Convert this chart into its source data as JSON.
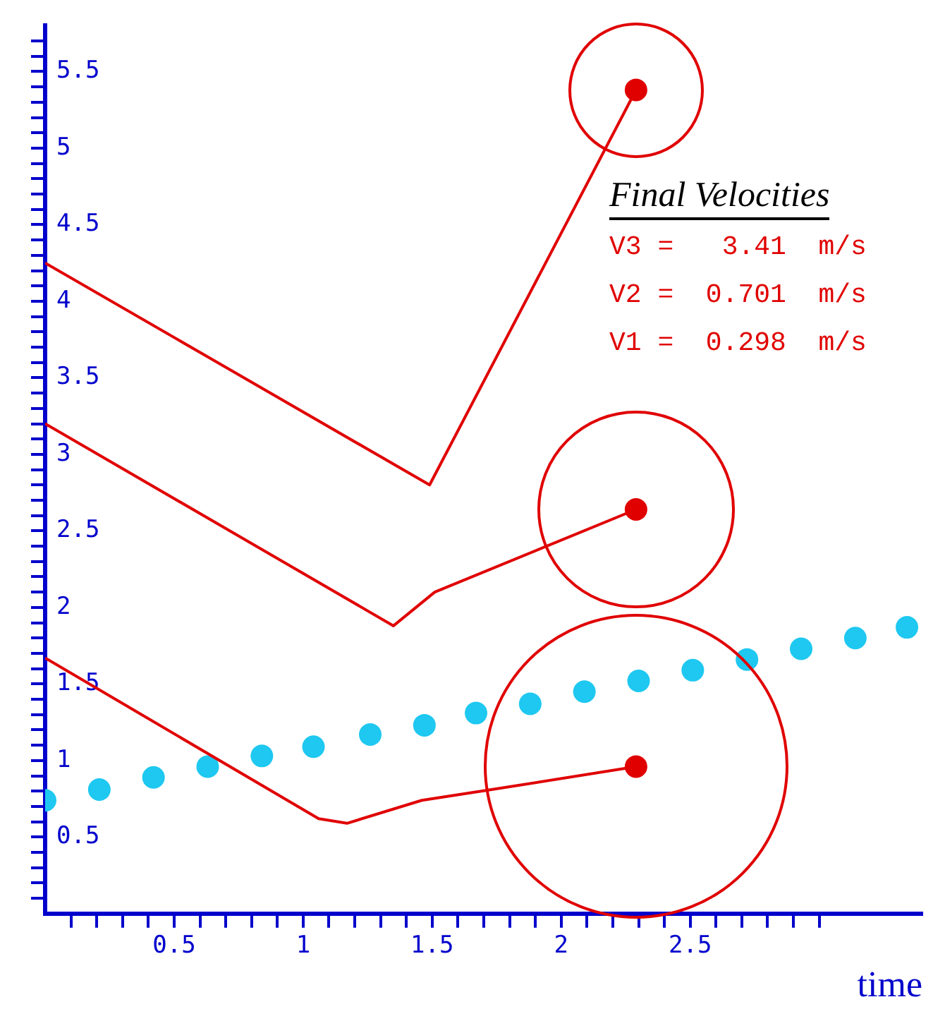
{
  "chart_data": {
    "type": "line",
    "xlabel": "time",
    "xlim": [
      0,
      3.4
    ],
    "ylim": [
      0,
      5.8
    ],
    "xticks": [
      {
        "value": 0.1,
        "label": null
      },
      {
        "value": 0.2,
        "label": null
      },
      {
        "value": 0.3,
        "label": null
      },
      {
        "value": 0.4,
        "label": null
      },
      {
        "value": 0.5,
        "label": "0.5"
      },
      {
        "value": 0.6,
        "label": null
      },
      {
        "value": 0.7,
        "label": null
      },
      {
        "value": 0.8,
        "label": null
      },
      {
        "value": 0.9,
        "label": null
      },
      1,
      {
        "value": 1.1,
        "label": null
      },
      {
        "value": 1.2,
        "label": null
      },
      {
        "value": 1.3,
        "label": null
      },
      {
        "value": 1.4,
        "label": null
      },
      {
        "value": 1.5,
        "label": "1.5"
      },
      {
        "value": 1.6,
        "label": null
      },
      {
        "value": 1.7,
        "label": null
      },
      {
        "value": 1.8,
        "label": null
      },
      {
        "value": 1.9,
        "label": null
      },
      2,
      {
        "value": 2.1,
        "label": null
      },
      {
        "value": 2.2,
        "label": null
      },
      {
        "value": 2.3,
        "label": null
      },
      {
        "value": 2.4,
        "label": null
      },
      {
        "value": 2.5,
        "label": "2.5"
      },
      {
        "value": 2.6,
        "label": null
      },
      {
        "value": 2.7,
        "label": null
      },
      {
        "value": 2.8,
        "label": null
      },
      {
        "value": 2.9,
        "label": null
      },
      {
        "value": 3,
        "label": null
      }
    ],
    "yticks": [
      {
        "value": 0.1,
        "label": null
      },
      {
        "value": 0.2,
        "label": null
      },
      {
        "value": 0.3,
        "label": null
      },
      {
        "value": 0.4,
        "label": null
      },
      {
        "value": 0.5,
        "label": "0.5"
      },
      {
        "value": 0.6,
        "label": null
      },
      {
        "value": 0.7,
        "label": null
      },
      {
        "value": 0.8,
        "label": null
      },
      {
        "value": 0.9,
        "label": null
      },
      1,
      {
        "value": 1.1,
        "label": null
      },
      {
        "value": 1.2,
        "label": null
      },
      {
        "value": 1.3,
        "label": null
      },
      {
        "value": 1.4,
        "label": null
      },
      {
        "value": 1.5,
        "label": "1.5"
      },
      {
        "value": 1.6,
        "label": null
      },
      {
        "value": 1.7,
        "label": null
      },
      {
        "value": 1.8,
        "label": null
      },
      {
        "value": 1.9,
        "label": null
      },
      2,
      {
        "value": 2.1,
        "label": null
      },
      {
        "value": 2.2,
        "label": null
      },
      {
        "value": 2.3,
        "label": null
      },
      {
        "value": 2.4,
        "label": null
      },
      {
        "value": 2.5,
        "label": "2.5"
      },
      {
        "value": 2.6,
        "label": null
      },
      {
        "value": 2.7,
        "label": null
      },
      {
        "value": 2.8,
        "label": null
      },
      {
        "value": 2.9,
        "label": null
      },
      3,
      {
        "value": 3.1,
        "label": null
      },
      {
        "value": 3.2,
        "label": null
      },
      {
        "value": 3.3,
        "label": null
      },
      {
        "value": 3.4,
        "label": null
      },
      {
        "value": 3.5,
        "label": "3.5"
      },
      {
        "value": 3.6,
        "label": null
      },
      {
        "value": 3.7,
        "label": null
      },
      {
        "value": 3.8,
        "label": null
      },
      {
        "value": 3.9,
        "label": null
      },
      4,
      {
        "value": 4.1,
        "label": null
      },
      {
        "value": 4.2,
        "label": null
      },
      {
        "value": 4.3,
        "label": null
      },
      {
        "value": 4.4,
        "label": null
      },
      {
        "value": 4.5,
        "label": "4.5"
      },
      {
        "value": 4.6,
        "label": null
      },
      {
        "value": 4.7,
        "label": null
      },
      {
        "value": 4.8,
        "label": null
      },
      {
        "value": 4.9,
        "label": null
      },
      5,
      {
        "value": 5.1,
        "label": null
      },
      {
        "value": 5.2,
        "label": null
      },
      {
        "value": 5.3,
        "label": null
      },
      {
        "value": 5.4,
        "label": null
      },
      {
        "value": 5.5,
        "label": "5.5"
      },
      {
        "value": 5.6,
        "label": null
      },
      {
        "value": 5.7,
        "label": null
      }
    ],
    "grid": false,
    "legend": false,
    "line_style": "solid",
    "marker": "none",
    "series": [
      {
        "color": "#e00000",
        "x": [
          0,
          1.49,
          2.29
        ],
        "values": [
          4.25,
          2.8,
          5.38
        ]
      },
      {
        "color": "#e00000",
        "x": [
          0,
          1.35,
          1.51,
          2.29
        ],
        "values": [
          3.2,
          1.88,
          2.1,
          2.64
        ]
      },
      {
        "color": "#e00000",
        "x": [
          0,
          1.06,
          1.17,
          1.46,
          1.73,
          2.29
        ],
        "values": [
          1.67,
          0.62,
          0.59,
          0.74,
          0.81,
          0.96
        ]
      },
      {
        "type": "scatter",
        "marker": "circle",
        "color": "#e00000",
        "x": [
          2.29,
          2.29,
          2.29
        ],
        "values": [
          5.38,
          2.64,
          0.96
        ]
      },
      {
        "type": "scatter",
        "marker": "circle",
        "color": "#1ec8f0",
        "x": [
          0,
          0.21,
          0.42,
          0.63,
          0.84,
          1.04,
          1.26,
          1.47,
          1.67,
          1.88,
          2.09,
          2.3,
          2.51,
          2.72,
          2.93,
          3.14,
          3.34
        ],
        "values": [
          0.74,
          0.81,
          0.89,
          0.96,
          1.03,
          1.09,
          1.17,
          1.23,
          1.31,
          1.37,
          1.45,
          1.52,
          1.59,
          1.66,
          1.73,
          1.8,
          1.87
        ]
      }
    ],
    "annotations": [
      "Final Velocities",
      "V3 =   3.41  m/s",
      "V2 =  0.701  m/s",
      "V1 =  0.298  m/s"
    ]
  }
}
